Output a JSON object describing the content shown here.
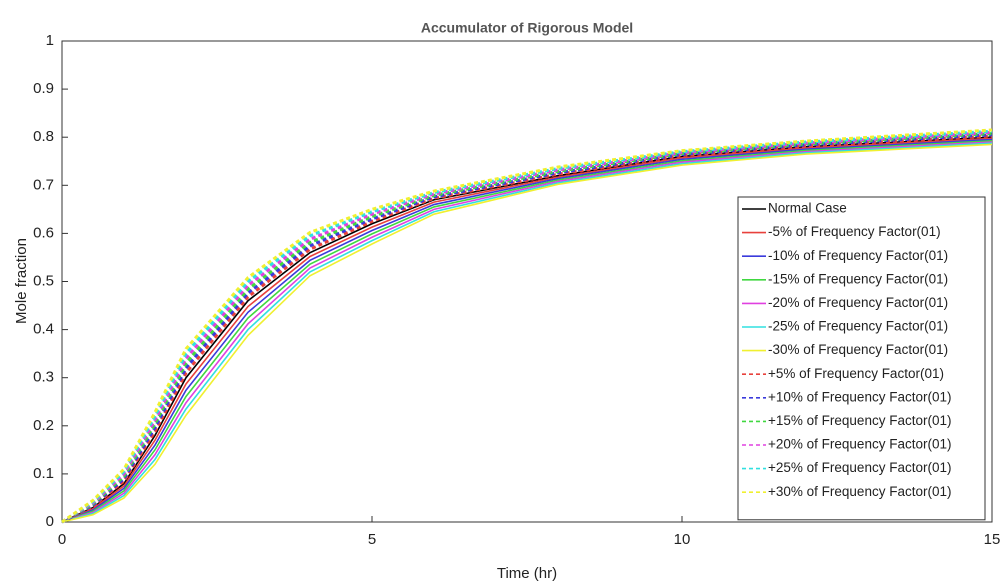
{
  "chart_data": {
    "type": "line",
    "title": "Accumulator of Rigorous Model",
    "xlabel": "Time (hr)",
    "ylabel": "Mole fraction",
    "x": [
      0,
      0.5,
      1,
      1.5,
      2,
      3,
      4,
      5,
      6,
      8,
      10,
      12,
      15
    ],
    "xlim": [
      0,
      15
    ],
    "xticks": [
      0,
      5,
      10,
      15
    ],
    "ylim": [
      0,
      1
    ],
    "yticks": [
      0,
      0.1,
      0.2,
      0.3,
      0.4,
      0.5,
      0.6,
      0.7,
      0.8,
      0.9,
      1
    ],
    "grid": false,
    "legend": "right",
    "series": [
      {
        "name": "Normal Case",
        "color": "#000000",
        "line_style": "solid",
        "values": [
          0,
          0.03,
          0.08,
          0.18,
          0.3,
          0.46,
          0.56,
          0.62,
          0.67,
          0.72,
          0.76,
          0.78,
          0.8
        ]
      },
      {
        "name": "-5% of Frequency Factor(01)",
        "color": "#e8413c",
        "line_style": "solid",
        "values": [
          0,
          0.0275,
          0.075,
          0.17,
          0.287,
          0.448,
          0.552,
          0.613,
          0.665,
          0.717,
          0.757,
          0.7775,
          0.7975
        ]
      },
      {
        "name": "-10% of Frequency Factor(01)",
        "color": "#3b3bdc",
        "line_style": "solid",
        "values": [
          0,
          0.025,
          0.07,
          0.16,
          0.274,
          0.436,
          0.544,
          0.606,
          0.66,
          0.714,
          0.754,
          0.775,
          0.795
        ]
      },
      {
        "name": "-15% of Frequency Factor(01)",
        "color": "#40d840",
        "line_style": "solid",
        "values": [
          0,
          0.0225,
          0.065,
          0.15,
          0.261,
          0.424,
          0.536,
          0.599,
          0.655,
          0.711,
          0.751,
          0.7725,
          0.7925
        ]
      },
      {
        "name": "-20% of Frequency Factor(01)",
        "color": "#e040e0",
        "line_style": "solid",
        "values": [
          0,
          0.02,
          0.06,
          0.14,
          0.248,
          0.412,
          0.528,
          0.592,
          0.65,
          0.708,
          0.748,
          0.77,
          0.79
        ]
      },
      {
        "name": "-25% of Frequency Factor(01)",
        "color": "#30e0e0",
        "line_style": "solid",
        "values": [
          0,
          0.0175,
          0.055,
          0.13,
          0.235,
          0.4,
          0.52,
          0.585,
          0.645,
          0.705,
          0.745,
          0.7675,
          0.7875
        ]
      },
      {
        "name": "-30% of Frequency Factor(01)",
        "color": "#f0f030",
        "line_style": "solid",
        "values": [
          0,
          0.015,
          0.05,
          0.12,
          0.222,
          0.388,
          0.512,
          0.578,
          0.64,
          0.702,
          0.742,
          0.765,
          0.785
        ]
      },
      {
        "name": "+5% of Frequency Factor(01)",
        "color": "#e8413c",
        "line_style": "dashed",
        "values": [
          0,
          0.0325,
          0.085,
          0.188,
          0.31,
          0.468,
          0.567,
          0.625,
          0.673,
          0.723,
          0.762,
          0.782,
          0.8025
        ]
      },
      {
        "name": "+10% of Frequency Factor(01)",
        "color": "#3b3bdc",
        "line_style": "dashed",
        "values": [
          0,
          0.035,
          0.09,
          0.196,
          0.32,
          0.476,
          0.574,
          0.63,
          0.676,
          0.726,
          0.764,
          0.784,
          0.805
        ]
      },
      {
        "name": "+15% of Frequency Factor(01)",
        "color": "#40d840",
        "line_style": "dashed",
        "values": [
          0,
          0.0375,
          0.095,
          0.204,
          0.33,
          0.484,
          0.581,
          0.635,
          0.679,
          0.729,
          0.766,
          0.786,
          0.8075
        ]
      },
      {
        "name": "+20% of Frequency Factor(01)",
        "color": "#e040e0",
        "line_style": "dashed",
        "values": [
          0,
          0.04,
          0.1,
          0.212,
          0.34,
          0.492,
          0.588,
          0.64,
          0.682,
          0.732,
          0.768,
          0.788,
          0.81
        ]
      },
      {
        "name": "+25% of Frequency Factor(01)",
        "color": "#30e0e0",
        "line_style": "dashed",
        "values": [
          0,
          0.0425,
          0.105,
          0.22,
          0.35,
          0.5,
          0.595,
          0.645,
          0.685,
          0.735,
          0.77,
          0.79,
          0.8125
        ]
      },
      {
        "name": "+30% of Frequency Factor(01)",
        "color": "#f0f030",
        "line_style": "dashed",
        "values": [
          0,
          0.045,
          0.11,
          0.228,
          0.36,
          0.508,
          0.602,
          0.65,
          0.688,
          0.738,
          0.772,
          0.792,
          0.815
        ]
      }
    ]
  }
}
